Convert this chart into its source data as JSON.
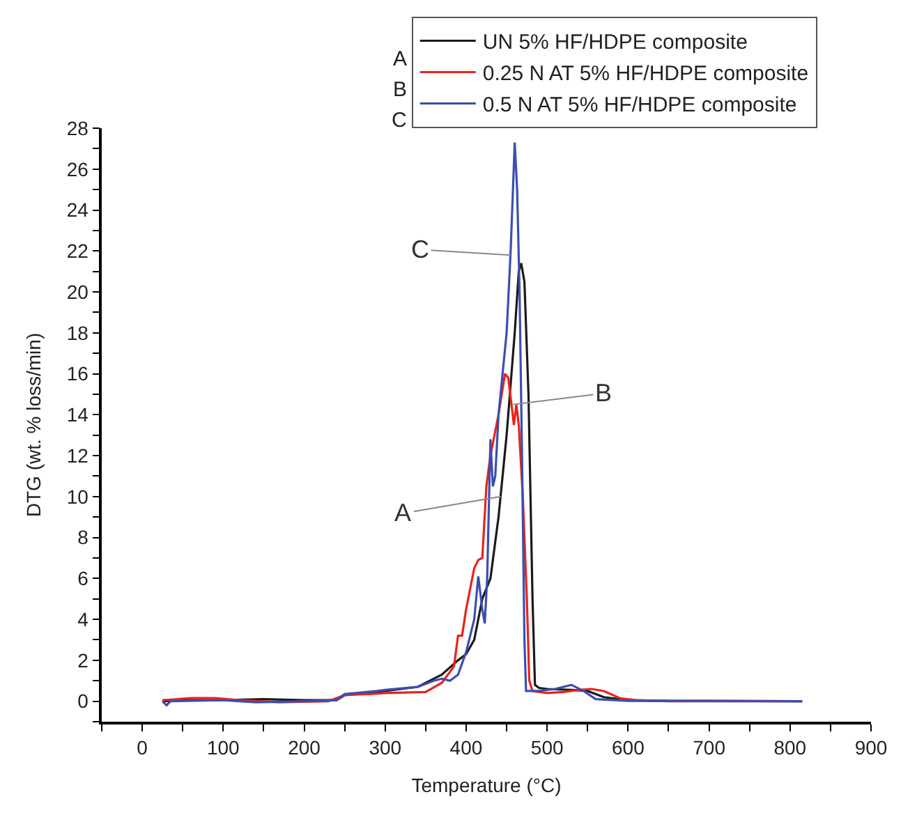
{
  "chart_data": {
    "type": "line",
    "xlabel": "Temperature (°C)",
    "ylabel": "DTG (wt. % loss/min)",
    "xlim": [
      -50,
      900
    ],
    "ylim": [
      -1,
      28
    ],
    "xticks": [
      {
        "value": -50,
        "label": null
      },
      0,
      {
        "value": 50,
        "label": null
      },
      100,
      {
        "value": 150,
        "label": null
      },
      200,
      {
        "value": 250,
        "label": null
      },
      300,
      {
        "value": 350,
        "label": null
      },
      400,
      {
        "value": 450,
        "label": null
      },
      500,
      {
        "value": 550,
        "label": null
      },
      600,
      {
        "value": 650,
        "label": null
      },
      700,
      {
        "value": 750,
        "label": null
      },
      800,
      {
        "value": 850,
        "label": null
      },
      900
    ],
    "yticks": [
      {
        "value": -1,
        "label": null
      },
      0,
      {
        "value": 1,
        "label": null
      },
      2,
      {
        "value": 3,
        "label": null
      },
      4,
      {
        "value": 5,
        "label": null
      },
      6,
      {
        "value": 7,
        "label": null
      },
      8,
      {
        "value": 9,
        "label": null
      },
      10,
      {
        "value": 11,
        "label": null
      },
      12,
      {
        "value": 13,
        "label": null
      },
      14,
      {
        "value": 15,
        "label": null
      },
      16,
      {
        "value": 17,
        "label": null
      },
      18,
      {
        "value": 19,
        "label": null
      },
      20,
      {
        "value": 21,
        "label": null
      },
      22,
      {
        "value": 23,
        "label": null
      },
      24,
      {
        "value": 25,
        "label": null
      },
      26,
      {
        "value": 27,
        "label": null
      },
      28
    ],
    "legend": "top right",
    "line_style": "solid",
    "marker": "none",
    "series": [
      {
        "name": "UN 5% HF/HDPE composite",
        "color": "#1a1a1a",
        "x": [
          25,
          60,
          100,
          150,
          200,
          240,
          250,
          300,
          340,
          370,
          390,
          400,
          410,
          420,
          430,
          440,
          450,
          460,
          465,
          468,
          472,
          477,
          482,
          485,
          490,
          500,
          530,
          550,
          570,
          600,
          650,
          815
        ],
        "values": [
          0,
          0.05,
          0.05,
          0.1,
          0.05,
          0.05,
          0.3,
          0.5,
          0.7,
          1.3,
          2,
          2.3,
          3,
          5,
          6,
          9,
          13,
          18,
          21,
          21.4,
          20.5,
          15,
          5,
          0.8,
          0.65,
          0.6,
          0.55,
          0.5,
          0.2,
          0.05,
          0.02,
          0
        ]
      },
      {
        "name": "0.25 N AT 5% HF/HDPE composite",
        "color": "#e8231c",
        "x": [
          25,
          60,
          90,
          120,
          170,
          230,
          250,
          280,
          300,
          350,
          370,
          385,
          390,
          395,
          400,
          410,
          415,
          420,
          425,
          430,
          440,
          448,
          452,
          456,
          459,
          462,
          465,
          470,
          475,
          478,
          482,
          500,
          520,
          540,
          555,
          570,
          590,
          610,
          650,
          815
        ],
        "values": [
          0.05,
          0.15,
          0.15,
          0.05,
          -0.05,
          0,
          0.3,
          0.35,
          0.4,
          0.45,
          0.9,
          1.7,
          3.2,
          3.2,
          4.5,
          6.5,
          6.9,
          7,
          10.5,
          12,
          14,
          16,
          15.8,
          14.5,
          13.5,
          14.5,
          13.5,
          10,
          5,
          1,
          0.5,
          0.4,
          0.45,
          0.55,
          0.6,
          0.5,
          0.15,
          0.05,
          0,
          0
        ]
      },
      {
        "name": "0.5 N AT 5% HF/HDPE composite",
        "color": "#3a4fb0",
        "x": [
          25,
          30,
          35,
          100,
          140,
          200,
          240,
          250,
          290,
          300,
          340,
          360,
          370,
          380,
          390,
          400,
          410,
          415,
          420,
          423,
          426,
          430,
          433,
          436,
          440,
          450,
          455,
          460,
          463,
          466,
          469,
          472,
          474,
          490,
          510,
          530,
          545,
          560,
          600,
          815
        ],
        "values": [
          0,
          -0.2,
          0,
          0.05,
          -0.05,
          0,
          0.05,
          0.35,
          0.5,
          0.55,
          0.7,
          1,
          1.1,
          1,
          1.3,
          2.4,
          4,
          6.1,
          4.5,
          3.8,
          6,
          12.8,
          10.5,
          11,
          14,
          18,
          22,
          27.3,
          25,
          20,
          12,
          3,
          0.5,
          0.5,
          0.6,
          0.8,
          0.5,
          0.1,
          0.02,
          0
        ]
      }
    ],
    "annotations": [
      {
        "text": "A",
        "x": 443,
        "y": 10
      },
      {
        "text": "B",
        "x": 458,
        "y": 14.5
      },
      {
        "text": "C",
        "x": 455,
        "y": 21.8
      },
      "A",
      "B",
      "C"
    ]
  }
}
